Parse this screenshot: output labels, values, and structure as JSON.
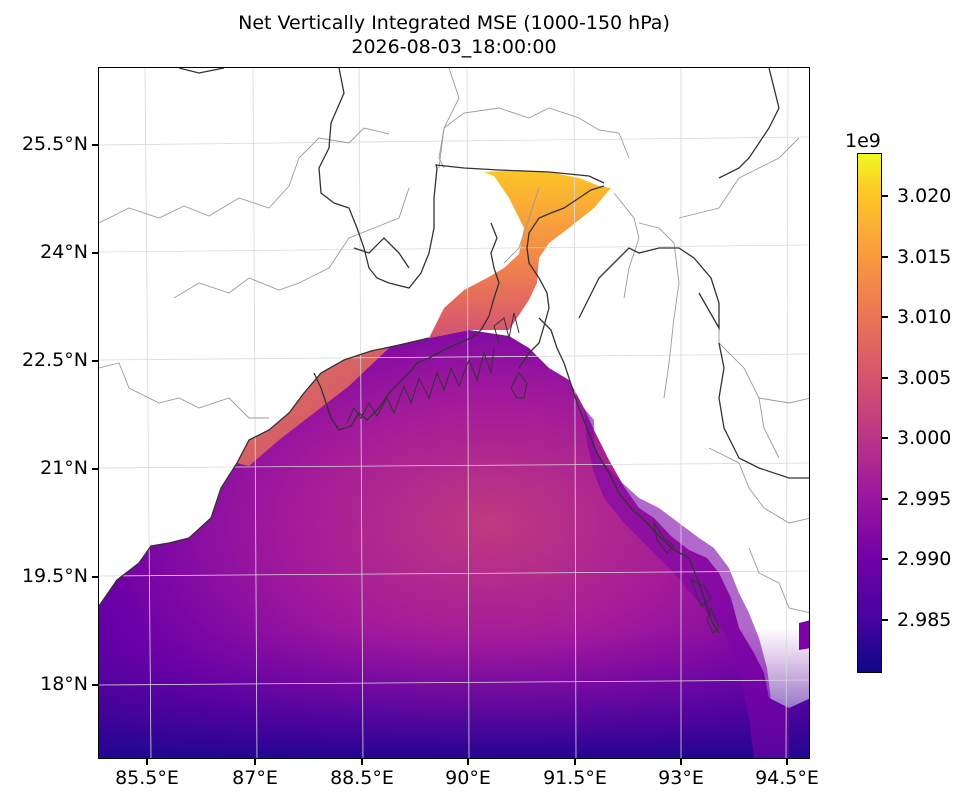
{
  "title": {
    "line1": "Net Vertically Integrated MSE (1000-150 hPa)",
    "line2": "2026-08-03_18:00:00"
  },
  "axes": {
    "lat_labels": [
      "25.5°N",
      "24°N",
      "22.5°N",
      "21°N",
      "19.5°N",
      "18°N"
    ],
    "lon_labels": [
      "85.5°E",
      "87°E",
      "88.5°E",
      "90°E",
      "91.5°E",
      "93°E",
      "94.5°E"
    ],
    "lat_range": [
      16.9,
      26.5
    ],
    "lon_range": [
      84.8,
      94.9
    ]
  },
  "colorbar": {
    "colormap": "plasma",
    "multiplier": "1e9",
    "tick_labels": [
      "3.020",
      "3.015",
      "3.010",
      "3.005",
      "3.000",
      "2.995",
      "2.990",
      "2.985"
    ],
    "range": [
      2.9805,
      3.0235
    ]
  },
  "colors": {
    "land": "#ffffff",
    "coastline": "#333333",
    "borders": "#999999",
    "frame": "#000000"
  }
}
